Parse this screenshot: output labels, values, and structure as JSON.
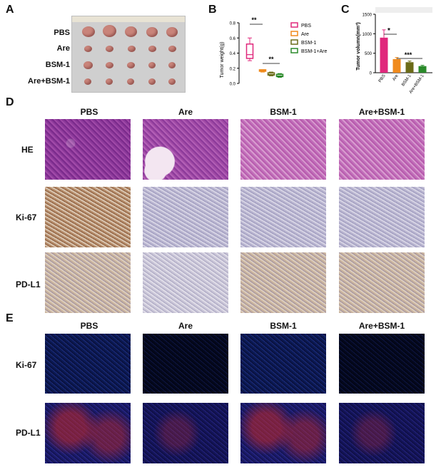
{
  "panels": {
    "A": "A",
    "B": "B",
    "C": "C",
    "D": "D",
    "E": "E"
  },
  "panel_a": {
    "rows": [
      "PBS",
      "Are",
      "BSM-1",
      "Are+BSM-1"
    ]
  },
  "panel_b": {
    "chart_data": {
      "type": "boxplot",
      "ylabel": "Tumor weight(g)",
      "ylim": [
        0,
        0.8
      ],
      "yticks": [
        "0.0",
        "0.2",
        "0.4",
        "0.6",
        "0.8"
      ],
      "series": [
        {
          "name": "PBS",
          "color": "#e0287c",
          "min": 0.3,
          "q1": 0.33,
          "median": 0.38,
          "q3": 0.52,
          "max": 0.6
        },
        {
          "name": "Are",
          "color": "#f08a1c",
          "min": 0.15,
          "q1": 0.16,
          "median": 0.17,
          "q3": 0.18,
          "max": 0.18
        },
        {
          "name": "BSM-1",
          "color": "#6b6b18",
          "min": 0.1,
          "q1": 0.11,
          "median": 0.12,
          "q3": 0.14,
          "max": 0.15
        },
        {
          "name": "BSM-1+Are",
          "color": "#2a8a2a",
          "min": 0.08,
          "q1": 0.09,
          "median": 0.1,
          "q3": 0.12,
          "max": 0.13
        }
      ],
      "significance": [
        "**",
        "**"
      ],
      "legend_position": "right"
    }
  },
  "panel_c": {
    "chart_data": {
      "type": "bar",
      "ylabel": "Tumor volumn(mm³)",
      "ylim": [
        0,
        1500
      ],
      "yticks": [
        "0",
        "500",
        "1000",
        "1500"
      ],
      "categories": [
        "PBS",
        "Are",
        "BSM-1",
        "Are+BSM-1"
      ],
      "values": [
        900,
        350,
        270,
        170
      ],
      "errors": [
        200,
        40,
        30,
        20
      ],
      "colors": [
        "#e0287c",
        "#f08a1c",
        "#6b6b18",
        "#2a8a2a"
      ],
      "significance": [
        "*",
        "***"
      ]
    }
  },
  "panel_d": {
    "columns": [
      "PBS",
      "Are",
      "BSM-1",
      "Are+BSM-1"
    ],
    "rows": [
      "HE",
      "Ki-67",
      "PD-L1"
    ]
  },
  "panel_e": {
    "columns": [
      "PBS",
      "Are",
      "BSM-1",
      "Are+BSM-1"
    ],
    "rows": [
      "Ki-67",
      "PD-L1"
    ]
  }
}
